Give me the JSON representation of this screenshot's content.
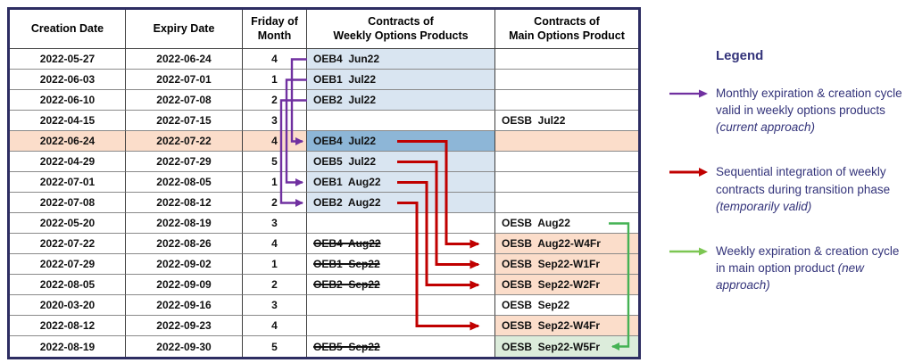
{
  "colors": {
    "navy": "#2d2d62",
    "peach": "#fbddca",
    "lightblue": "#d9e5f1",
    "darkblue": "#8db6d7",
    "greencell": "#dcecdb",
    "purple_arrow": "#7030a0",
    "red_arrow": "#c00000",
    "green_arrow": "#44b254",
    "legend_green_arrow": "#7cc652",
    "legend_text": "#33337a"
  },
  "table": {
    "headers": [
      "Creation Date",
      "Expiry Date",
      "Friday of\nMonth",
      "Contracts of\nWeekly Options Products",
      "Contracts of\nMain Options Product"
    ],
    "rows": [
      {
        "creation": "2022-05-27",
        "expiry": "2022-06-24",
        "friday": "4",
        "weekly": {
          "text": "OEB4  Jun22",
          "bg": "lightblue",
          "struck": false
        },
        "main": {
          "text": "",
          "bg": ""
        },
        "highlight": false
      },
      {
        "creation": "2022-06-03",
        "expiry": "2022-07-01",
        "friday": "1",
        "weekly": {
          "text": "OEB1  Jul22",
          "bg": "lightblue",
          "struck": false
        },
        "main": {
          "text": "",
          "bg": ""
        },
        "highlight": false
      },
      {
        "creation": "2022-06-10",
        "expiry": "2022-07-08",
        "friday": "2",
        "weekly": {
          "text": "OEB2  Jul22",
          "bg": "lightblue",
          "struck": false
        },
        "main": {
          "text": "",
          "bg": ""
        },
        "highlight": false
      },
      {
        "creation": "2022-04-15",
        "expiry": "2022-07-15",
        "friday": "3",
        "weekly": {
          "text": "",
          "bg": "",
          "struck": false
        },
        "main": {
          "text": "OESB  Jul22",
          "bg": ""
        },
        "highlight": false
      },
      {
        "creation": "2022-06-24",
        "expiry": "2022-07-22",
        "friday": "4",
        "weekly": {
          "text": "OEB4  Jul22",
          "bg": "darkblue",
          "struck": false
        },
        "main": {
          "text": "",
          "bg": "peach"
        },
        "highlight": true
      },
      {
        "creation": "2022-04-29",
        "expiry": "2022-07-29",
        "friday": "5",
        "weekly": {
          "text": "OEB5  Jul22",
          "bg": "lightblue",
          "struck": false
        },
        "main": {
          "text": "",
          "bg": ""
        },
        "highlight": false
      },
      {
        "creation": "2022-07-01",
        "expiry": "2022-08-05",
        "friday": "1",
        "weekly": {
          "text": "OEB1  Aug22",
          "bg": "lightblue",
          "struck": false
        },
        "main": {
          "text": "",
          "bg": ""
        },
        "highlight": false
      },
      {
        "creation": "2022-07-08",
        "expiry": "2022-08-12",
        "friday": "2",
        "weekly": {
          "text": "OEB2  Aug22",
          "bg": "lightblue",
          "struck": false
        },
        "main": {
          "text": "",
          "bg": ""
        },
        "highlight": false
      },
      {
        "creation": "2022-05-20",
        "expiry": "2022-08-19",
        "friday": "3",
        "weekly": {
          "text": "",
          "bg": "",
          "struck": false
        },
        "main": {
          "text": "OESB  Aug22",
          "bg": ""
        },
        "highlight": false
      },
      {
        "creation": "2022-07-22",
        "expiry": "2022-08-26",
        "friday": "4",
        "weekly": {
          "text": "OEB4  Aug22",
          "bg": "",
          "struck": true
        },
        "main": {
          "text": "OESB  Aug22-W4Fr",
          "bg": "peach"
        },
        "highlight": false
      },
      {
        "creation": "2022-07-29",
        "expiry": "2022-09-02",
        "friday": "1",
        "weekly": {
          "text": "OEB1  Sep22",
          "bg": "",
          "struck": true
        },
        "main": {
          "text": "OESB  Sep22-W1Fr",
          "bg": "peach"
        },
        "highlight": false
      },
      {
        "creation": "2022-08-05",
        "expiry": "2022-09-09",
        "friday": "2",
        "weekly": {
          "text": "OEB2  Sep22",
          "bg": "",
          "struck": true
        },
        "main": {
          "text": "OESB  Sep22-W2Fr",
          "bg": "peach"
        },
        "highlight": false
      },
      {
        "creation": "2020-03-20",
        "expiry": "2022-09-16",
        "friday": "3",
        "weekly": {
          "text": "",
          "bg": "",
          "struck": false
        },
        "main": {
          "text": "OESB  Sep22",
          "bg": ""
        },
        "highlight": false
      },
      {
        "creation": "2022-08-12",
        "expiry": "2022-09-23",
        "friday": "4",
        "weekly": {
          "text": "",
          "bg": "",
          "struck": false
        },
        "main": {
          "text": "OESB  Sep22-W4Fr",
          "bg": "peach"
        },
        "highlight": false
      },
      {
        "creation": "2022-08-19",
        "expiry": "2022-09-30",
        "friday": "5",
        "weekly": {
          "text": "OEB5  Sep22",
          "bg": "",
          "struck": true
        },
        "main": {
          "text": "OESB  Sep22-W5Fr",
          "bg": "green"
        },
        "highlight": false
      }
    ]
  },
  "links": {
    "purple": [
      {
        "from_row": 1,
        "to_row": 5
      },
      {
        "from_row": 2,
        "to_row": 7
      },
      {
        "from_row": 3,
        "to_row": 8
      }
    ],
    "red": [
      {
        "from_row": 5,
        "to_row": 10
      },
      {
        "from_row": 6,
        "to_row": 11
      },
      {
        "from_row": 7,
        "to_row": 12
      },
      {
        "from_row": 8,
        "to_row": 14
      }
    ],
    "green": [
      {
        "from_row": 9,
        "to_row": 15
      }
    ]
  },
  "legend": {
    "title": "Legend",
    "items": [
      {
        "arrow": "purple",
        "text": "Monthly expiration & creation cycle valid in weekly options products",
        "italic": "(current approach)"
      },
      {
        "arrow": "red",
        "text": "Sequential integration of weekly contracts during transition phase",
        "italic": "(temporarily valid)"
      },
      {
        "arrow": "green",
        "text": "Weekly expiration & creation cycle in main option product",
        "italic": "(new approach)"
      }
    ]
  }
}
